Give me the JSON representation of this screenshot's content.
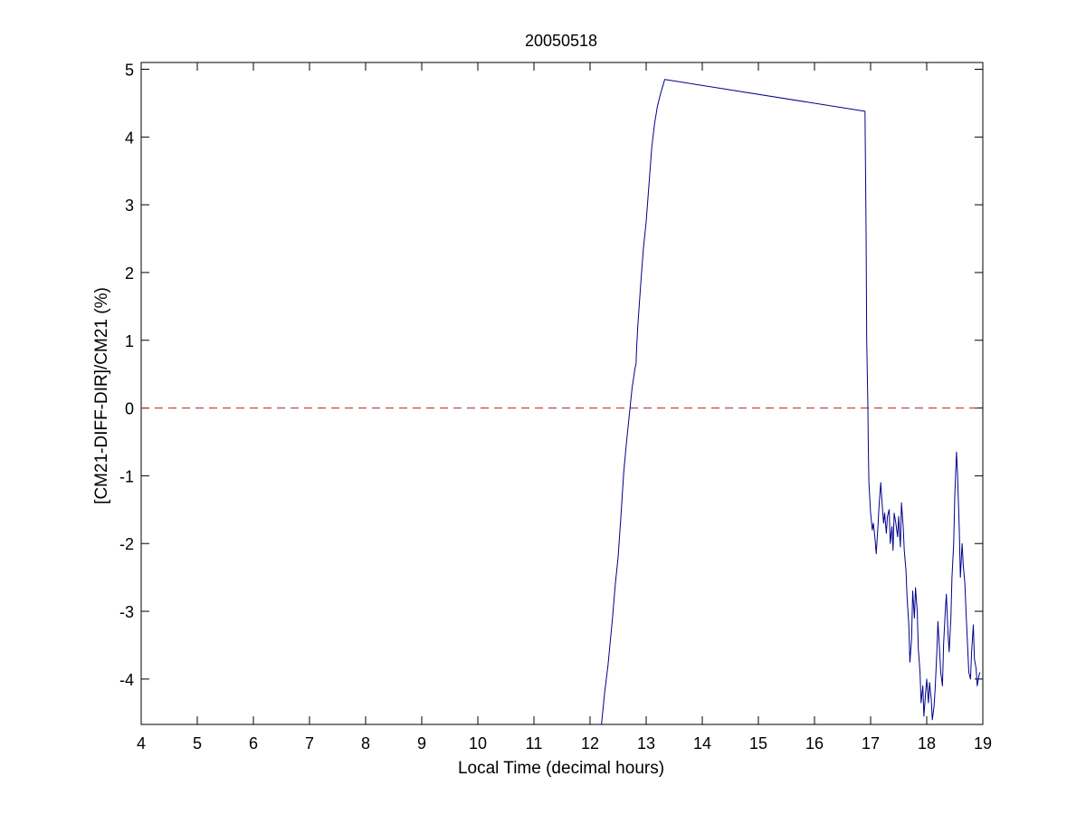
{
  "chart_data": {
    "type": "line",
    "title": "20050518",
    "xlabel": "Local Time (decimal hours)",
    "ylabel": "[CM21-DIFF-DIR]/CM21 (%)",
    "xlim": [
      4,
      19
    ],
    "ylim": [
      -4.67,
      5.1
    ],
    "xticks": [
      4,
      5,
      6,
      7,
      8,
      9,
      10,
      11,
      12,
      13,
      14,
      15,
      16,
      17,
      18,
      19
    ],
    "yticks": [
      -4,
      -3,
      -2,
      -1,
      0,
      1,
      2,
      3,
      4,
      5
    ],
    "grid": false,
    "series_color": "#00008b",
    "reference_line": {
      "y": 0,
      "color": "#b22222",
      "style": "dashed"
    },
    "series": [
      {
        "x": [
          12.2,
          12.26,
          12.32,
          12.4,
          12.45,
          12.5,
          12.55,
          12.6,
          12.65,
          12.7,
          12.73,
          12.75,
          12.8,
          12.82,
          12.83,
          12.85,
          12.9,
          12.95,
          13.0,
          13.05,
          13.1,
          13.15,
          13.2,
          13.25,
          13.33,
          16.9,
          16.92,
          16.93,
          16.95,
          16.96,
          16.97,
          17.0,
          17.03,
          17.05,
          17.08,
          17.1,
          17.13,
          17.15,
          17.18,
          17.2,
          17.23,
          17.25,
          17.28,
          17.3,
          17.33,
          17.35,
          17.38,
          17.4,
          17.42,
          17.45,
          17.48,
          17.5,
          17.53,
          17.55,
          17.58,
          17.6,
          17.63,
          17.65,
          17.68,
          17.7,
          17.73,
          17.75,
          17.78,
          17.8,
          17.83,
          17.85,
          17.88,
          17.9,
          17.93,
          17.95,
          17.98,
          18.0,
          18.03,
          18.05,
          18.08,
          18.1,
          18.13,
          18.15,
          18.18,
          18.2,
          18.23,
          18.25,
          18.28,
          18.3,
          18.33,
          18.35,
          18.38,
          18.4,
          18.43,
          18.45,
          18.48,
          18.5,
          18.53,
          18.55,
          18.58,
          18.6,
          18.63,
          18.65,
          18.68,
          18.7,
          18.73,
          18.75,
          18.78,
          18.8,
          18.83,
          18.85,
          18.88,
          18.9,
          18.93,
          18.95
        ],
        "y": [
          -4.7,
          -4.2,
          -3.8,
          -3.1,
          -2.6,
          -2.2,
          -1.6,
          -0.95,
          -0.5,
          -0.1,
          0.15,
          0.3,
          0.58,
          0.65,
          0.9,
          1.2,
          1.8,
          2.35,
          2.75,
          3.3,
          3.85,
          4.2,
          4.45,
          4.62,
          4.85,
          4.38,
          2.6,
          1.0,
          0.1,
          -0.6,
          -1.1,
          -1.55,
          -1.8,
          -1.7,
          -1.95,
          -2.15,
          -1.75,
          -1.45,
          -1.1,
          -1.35,
          -1.7,
          -1.55,
          -1.85,
          -1.6,
          -1.5,
          -2.0,
          -1.75,
          -2.1,
          -1.55,
          -1.7,
          -1.9,
          -1.6,
          -2.05,
          -1.4,
          -1.75,
          -2.1,
          -2.4,
          -2.8,
          -3.2,
          -3.75,
          -3.4,
          -2.7,
          -3.1,
          -2.65,
          -3.0,
          -3.55,
          -3.9,
          -4.35,
          -4.1,
          -4.55,
          -4.2,
          -4.0,
          -4.35,
          -4.05,
          -4.3,
          -4.6,
          -4.4,
          -4.15,
          -3.6,
          -3.15,
          -3.6,
          -3.9,
          -4.1,
          -3.5,
          -3.0,
          -2.75,
          -3.35,
          -3.6,
          -3.1,
          -2.5,
          -2.0,
          -1.3,
          -0.65,
          -1.0,
          -1.8,
          -2.5,
          -2.0,
          -2.3,
          -2.6,
          -3.0,
          -3.55,
          -3.9,
          -4.0,
          -3.6,
          -3.2,
          -3.7,
          -3.85,
          -4.1,
          -3.95,
          -3.9
        ]
      }
    ]
  }
}
